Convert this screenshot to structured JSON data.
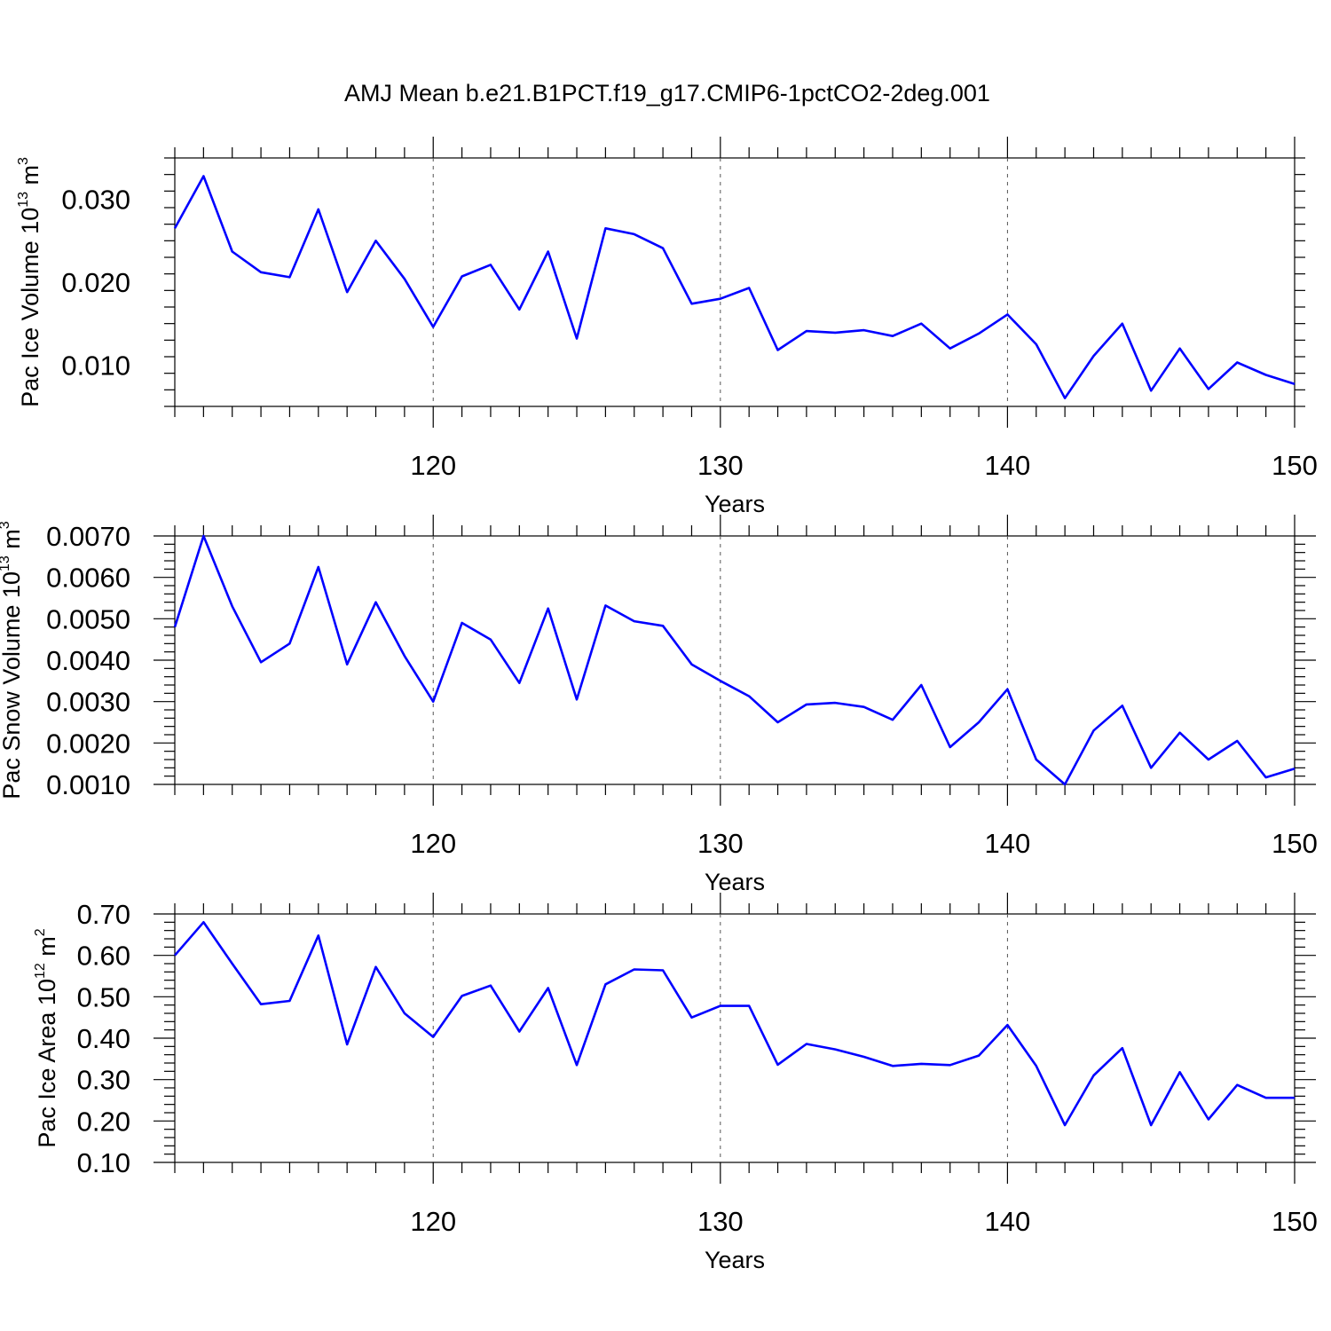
{
  "figure": {
    "title": "AMJ Mean b.e21.B1PCT.f19_g17.CMIP6-1pctCO2-2deg.001"
  },
  "colors": {
    "series": "#0000ff",
    "grid": "#555555",
    "axis": "#000000"
  },
  "chart_data": [
    {
      "type": "line",
      "xlabel": "Years",
      "ylabel": {
        "text": "Pac Ice Volume 10",
        "sup": "13",
        "unit": " m",
        "unit_sup": "3"
      },
      "xlim": [
        111,
        150
      ],
      "ylim": [
        0.005,
        0.035
      ],
      "xticks": [
        120,
        130,
        140,
        150
      ],
      "yticks": [
        0.01,
        0.02,
        0.03
      ],
      "ytick_labels": [
        "0.010",
        "0.020",
        "0.030"
      ],
      "grid_x": true,
      "grid_y": false,
      "x": [
        111,
        112,
        113,
        114,
        115,
        116,
        117,
        118,
        119,
        120,
        121,
        122,
        123,
        124,
        125,
        126,
        127,
        128,
        129,
        130,
        131,
        132,
        133,
        134,
        135,
        136,
        137,
        138,
        139,
        140,
        141,
        142,
        143,
        144,
        145,
        146,
        147,
        148,
        149,
        150
      ],
      "series": [
        {
          "values": [
            0.0265,
            0.0328,
            0.0237,
            0.0212,
            0.0206,
            0.0288,
            0.0188,
            0.025,
            0.0204,
            0.0146,
            0.0207,
            0.0221,
            0.0167,
            0.0237,
            0.0132,
            0.0265,
            0.0258,
            0.0241,
            0.0174,
            0.018,
            0.0193,
            0.0118,
            0.0141,
            0.0139,
            0.0142,
            0.0135,
            0.015,
            0.012,
            0.0138,
            0.0161,
            0.0125,
            0.006,
            0.0111,
            0.015,
            0.0069,
            0.012,
            0.0071,
            0.0103,
            0.0088,
            0.0077
          ]
        }
      ]
    },
    {
      "type": "line",
      "xlabel": "Years",
      "ylabel": {
        "text": "Pac Snow Volume 10",
        "sup": "13",
        "unit": " m",
        "unit_sup": "3"
      },
      "xlim": [
        111,
        150
      ],
      "ylim": [
        0.001,
        0.007
      ],
      "xticks": [
        120,
        130,
        140,
        150
      ],
      "yticks": [
        0.001,
        0.002,
        0.003,
        0.004,
        0.005,
        0.006,
        0.007
      ],
      "ytick_labels": [
        "0.0010",
        "0.0020",
        "0.0030",
        "0.0040",
        "0.0050",
        "0.0060",
        "0.0070"
      ],
      "grid_x": true,
      "grid_y": false,
      "x": [
        111,
        112,
        113,
        114,
        115,
        116,
        117,
        118,
        119,
        120,
        121,
        122,
        123,
        124,
        125,
        126,
        127,
        128,
        129,
        130,
        131,
        132,
        133,
        134,
        135,
        136,
        137,
        138,
        139,
        140,
        141,
        142,
        143,
        144,
        145,
        146,
        147,
        148,
        149,
        150
      ],
      "series": [
        {
          "values": [
            0.0048,
            0.007,
            0.0053,
            0.00395,
            0.0044,
            0.00625,
            0.0039,
            0.0054,
            0.0041,
            0.003,
            0.0049,
            0.0045,
            0.00345,
            0.00525,
            0.00305,
            0.00532,
            0.00494,
            0.00483,
            0.0039,
            0.0035,
            0.00313,
            0.0025,
            0.00293,
            0.00297,
            0.00287,
            0.00256,
            0.0034,
            0.0019,
            0.0025,
            0.0033,
            0.0016,
            0.001,
            0.0023,
            0.0029,
            0.0014,
            0.00225,
            0.0016,
            0.00205,
            0.00117,
            0.00138
          ]
        }
      ]
    },
    {
      "type": "line",
      "xlabel": "Years",
      "ylabel": {
        "text": "Pac Ice Area 10",
        "sup": "12",
        "unit": " m",
        "unit_sup": "2"
      },
      "xlim": [
        111,
        150
      ],
      "ylim": [
        0.1,
        0.7
      ],
      "xticks": [
        120,
        130,
        140,
        150
      ],
      "yticks": [
        0.1,
        0.2,
        0.3,
        0.4,
        0.5,
        0.6,
        0.7
      ],
      "ytick_labels": [
        "0.10",
        "0.20",
        "0.30",
        "0.40",
        "0.50",
        "0.60",
        "0.70"
      ],
      "grid_x": true,
      "grid_y": false,
      "x": [
        111,
        112,
        113,
        114,
        115,
        116,
        117,
        118,
        119,
        120,
        121,
        122,
        123,
        124,
        125,
        126,
        127,
        128,
        129,
        130,
        131,
        132,
        133,
        134,
        135,
        136,
        137,
        138,
        139,
        140,
        141,
        142,
        143,
        144,
        145,
        146,
        147,
        148,
        149,
        150
      ],
      "series": [
        {
          "values": [
            0.6,
            0.68,
            0.58,
            0.482,
            0.49,
            0.648,
            0.385,
            0.572,
            0.46,
            0.403,
            0.502,
            0.527,
            0.416,
            0.521,
            0.335,
            0.53,
            0.566,
            0.564,
            0.45,
            0.478,
            0.478,
            0.336,
            0.386,
            0.373,
            0.355,
            0.333,
            0.338,
            0.335,
            0.358,
            0.432,
            0.333,
            0.19,
            0.31,
            0.376,
            0.19,
            0.318,
            0.204,
            0.287,
            0.256,
            0.256
          ]
        }
      ]
    }
  ]
}
